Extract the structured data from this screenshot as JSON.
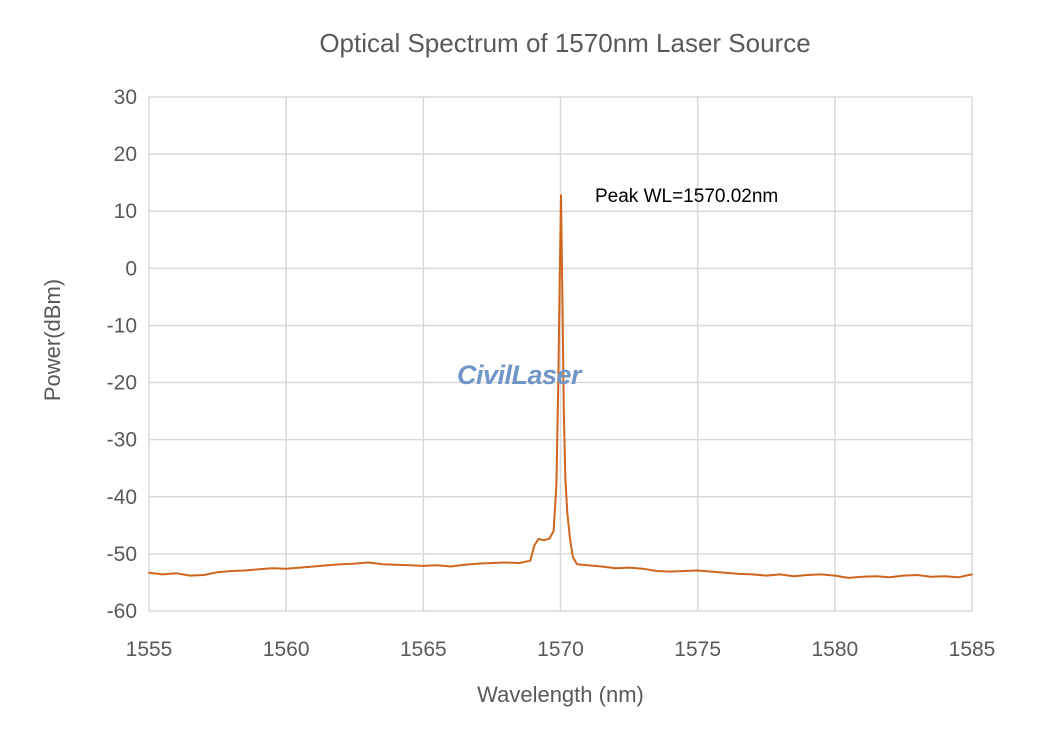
{
  "chart_data": {
    "type": "line",
    "title": "Optical Spectrum of 1570nm Laser Source",
    "xlabel": "Wavelength (nm)",
    "ylabel": "Power(dBm)",
    "xlim": [
      1555,
      1585
    ],
    "ylim": [
      -60,
      30
    ],
    "xticks": [
      1555,
      1560,
      1565,
      1570,
      1575,
      1580,
      1585
    ],
    "yticks": [
      30,
      20,
      10,
      0,
      -10,
      -20,
      -30,
      -40,
      -50,
      -60
    ],
    "grid": true,
    "annotation": "Peak WL=1570.02nm",
    "watermark": "CivilLaser",
    "series": [
      {
        "color": "#d0661d",
        "x": [
          1555,
          1555.5,
          1556,
          1556.5,
          1557,
          1557.5,
          1558,
          1558.5,
          1559,
          1559.5,
          1560,
          1560.5,
          1561,
          1561.5,
          1562,
          1562.5,
          1563,
          1563.5,
          1564,
          1564.5,
          1565,
          1565.5,
          1566,
          1566.5,
          1567,
          1567.5,
          1568,
          1568.5,
          1568.9,
          1569.05,
          1569.2,
          1569.4,
          1569.6,
          1569.75,
          1569.85,
          1569.92,
          1569.97,
          1570.02,
          1570.07,
          1570.12,
          1570.18,
          1570.25,
          1570.35,
          1570.45,
          1570.6,
          1571,
          1571.5,
          1572,
          1572.5,
          1573,
          1573.5,
          1574,
          1574.5,
          1575,
          1575.5,
          1576,
          1576.5,
          1577,
          1577.5,
          1578,
          1578.5,
          1579,
          1579.5,
          1580,
          1580.5,
          1581,
          1581.5,
          1582,
          1582.5,
          1583,
          1583.5,
          1584,
          1584.5,
          1585
        ],
        "y": [
          -53.3,
          -53.6,
          -53.4,
          -53.8,
          -53.7,
          -53.2,
          -53.0,
          -52.9,
          -52.7,
          -52.5,
          -52.6,
          -52.4,
          -52.2,
          -52.0,
          -51.8,
          -51.7,
          -51.5,
          -51.8,
          -51.9,
          -52.0,
          -52.1,
          -52.0,
          -52.2,
          -51.9,
          -51.7,
          -51.6,
          -51.5,
          -51.6,
          -51.2,
          -48.5,
          -47.4,
          -47.6,
          -47.3,
          -46.0,
          -38.0,
          -20.0,
          -2.0,
          12.8,
          -5.0,
          -25.0,
          -37.0,
          -43.0,
          -47.5,
          -50.5,
          -51.8,
          -52.0,
          -52.2,
          -52.5,
          -52.4,
          -52.6,
          -53.0,
          -53.1,
          -53.0,
          -52.9,
          -53.1,
          -53.3,
          -53.5,
          -53.6,
          -53.8,
          -53.6,
          -53.9,
          -53.7,
          -53.6,
          -53.8,
          -54.2,
          -54.0,
          -53.9,
          -54.1,
          -53.8,
          -53.7,
          -54.0,
          -53.9,
          -54.1,
          -53.6
        ]
      }
    ]
  }
}
